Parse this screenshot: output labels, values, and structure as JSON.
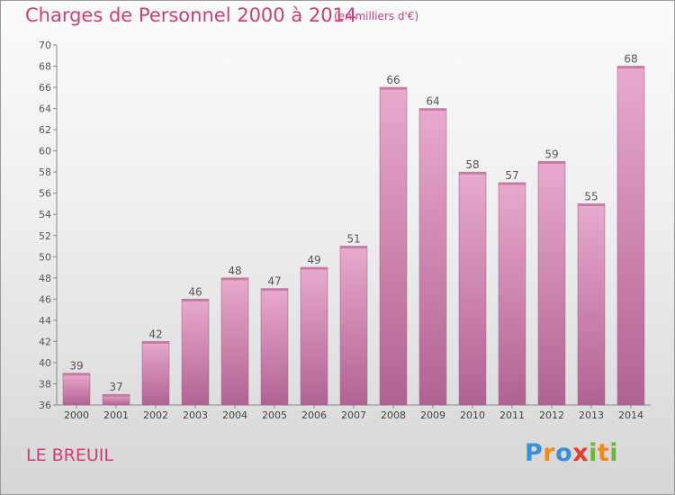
{
  "header": {
    "title": "Charges de Personnel 2000 à 2014",
    "subtitle": "(en milliers d'€)"
  },
  "footer": {
    "commune": "LE BREUIL",
    "logo_text": "Proxiti"
  },
  "colors": {
    "title": "#cf3e73",
    "bar_top": "#e9a9cd",
    "bar_bottom": "#b06393",
    "logo": [
      "#3a8fd6",
      "#f08a1c",
      "#3a8fd6",
      "#e23c2c",
      "#6db33f",
      "#f08a1c",
      "#e23c2c"
    ]
  },
  "chart_data": {
    "type": "bar",
    "title": "Charges de Personnel 2000 à 2014",
    "subtitle": "(en milliers d'€)",
    "categories": [
      "2000",
      "2001",
      "2002",
      "2003",
      "2004",
      "2005",
      "2006",
      "2007",
      "2008",
      "2009",
      "2010",
      "2011",
      "2012",
      "2013",
      "2014"
    ],
    "values": [
      39,
      37,
      42,
      46,
      48,
      47,
      49,
      51,
      66,
      64,
      58,
      57,
      59,
      55,
      68
    ],
    "data_labels": [
      "39",
      "37",
      "42",
      "46",
      "48",
      "47",
      "49",
      "51",
      "66",
      "64",
      "58",
      "57",
      "59",
      "55",
      "68"
    ],
    "ylim": [
      36,
      70
    ],
    "yticks": [
      "36",
      "38",
      "40",
      "42",
      "44",
      "46",
      "48",
      "50",
      "52",
      "54",
      "56",
      "58",
      "60",
      "62",
      "64",
      "66",
      "68",
      "70"
    ],
    "xlabel": "",
    "ylabel": "",
    "grid": false,
    "legend": "none"
  }
}
